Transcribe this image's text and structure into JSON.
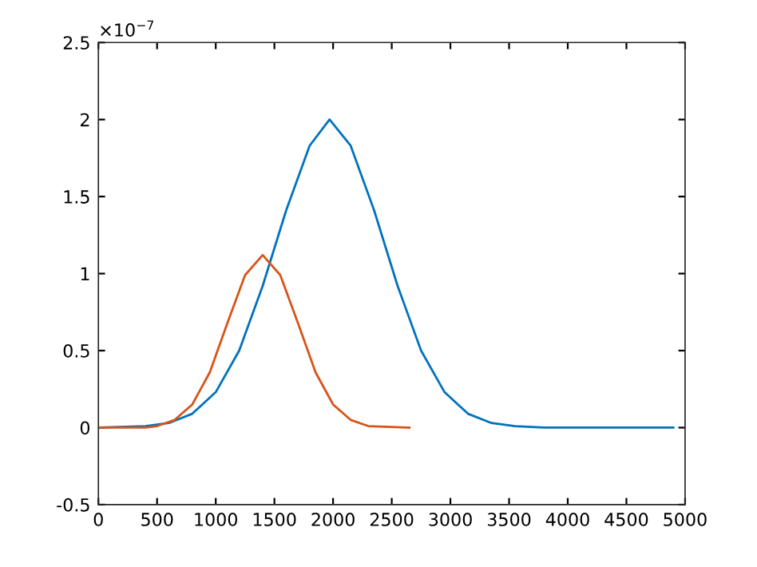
{
  "chart_data": {
    "type": "line",
    "series": [
      {
        "color": "#0072bd",
        "x": [
          0,
          400,
          600,
          800,
          1000,
          1200,
          1400,
          1600,
          1800,
          1970,
          2150,
          2350,
          2550,
          2750,
          2950,
          3150,
          3350,
          3550,
          3800,
          4900
        ],
        "values": [
          0,
          0.01,
          0.03,
          0.09,
          0.23,
          0.5,
          0.92,
          1.41,
          1.83,
          2.0,
          1.83,
          1.41,
          0.92,
          0.5,
          0.23,
          0.09,
          0.03,
          0.01,
          0,
          0
        ]
      },
      {
        "color": "#d95319",
        "x": [
          0,
          400,
          500,
          650,
          800,
          950,
          1100,
          1250,
          1400,
          1550,
          1700,
          1850,
          2000,
          2150,
          2300,
          2650
        ],
        "values": [
          0,
          0,
          0.01,
          0.05,
          0.15,
          0.36,
          0.68,
          0.99,
          1.12,
          0.99,
          0.68,
          0.36,
          0.15,
          0.05,
          0.01,
          0
        ]
      }
    ],
    "annotations": [
      "×10$^{−7}$"
    ],
    "xlim": [
      0,
      5000
    ],
    "xticks": [
      0,
      500,
      1000,
      1500,
      2000,
      2500,
      3000,
      3500,
      4000,
      4500,
      5000
    ],
    "ylim": [
      -0.5,
      2.5
    ],
    "yticks": [
      -0.5,
      0,
      0.5,
      1,
      1.5,
      2,
      2.5
    ],
    "grid": false,
    "marker": "none",
    "line_style": "solid"
  }
}
